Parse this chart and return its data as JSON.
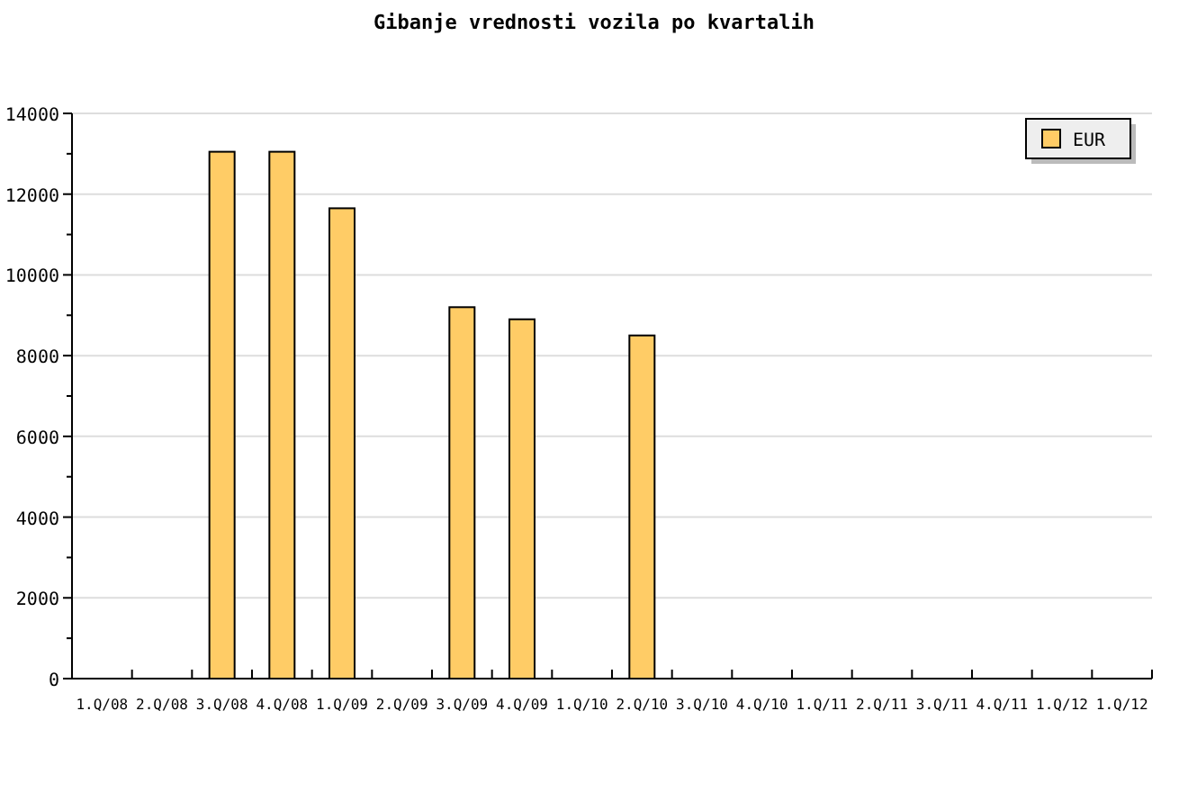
{
  "chart_data": {
    "type": "bar",
    "title": "Gibanje vrednosti vozila po kvartalih",
    "categories": [
      "1.Q/08",
      "2.Q/08",
      "3.Q/08",
      "4.Q/08",
      "1.Q/09",
      "2.Q/09",
      "3.Q/09",
      "4.Q/09",
      "1.Q/10",
      "2.Q/10",
      "3.Q/10",
      "4.Q/10",
      "1.Q/11",
      "2.Q/11",
      "3.Q/11",
      "4.Q/11",
      "1.Q/12",
      "1.Q/12"
    ],
    "series": [
      {
        "name": "EUR",
        "color": "#ffcc66",
        "values": [
          null,
          null,
          13050,
          13050,
          11650,
          null,
          9200,
          8900,
          null,
          8500,
          null,
          null,
          null,
          null,
          null,
          null,
          null,
          null
        ]
      }
    ],
    "ylim": [
      0,
      14000
    ],
    "yticks": [
      0,
      2000,
      4000,
      6000,
      8000,
      10000,
      12000,
      14000
    ],
    "grid": "y",
    "legend": "top right"
  }
}
